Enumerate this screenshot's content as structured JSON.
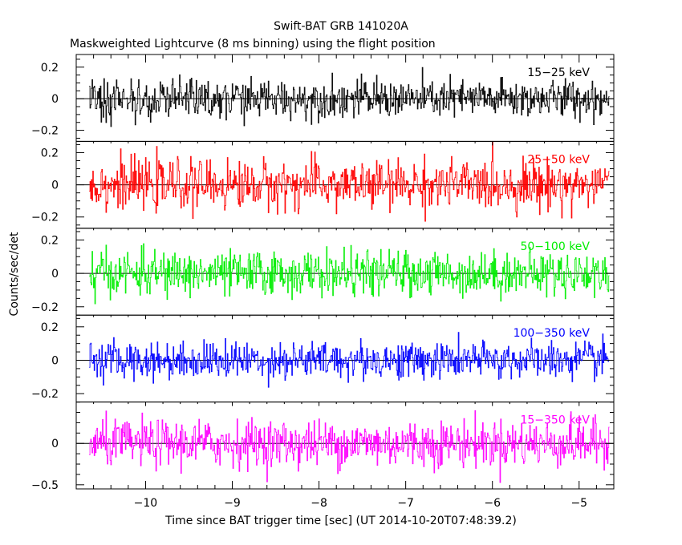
{
  "title": "Swift-BAT GRB 141020A",
  "subtitle": "Maskweighted Lightcurve (8 ms binning) using the flight position",
  "xlabel": "Time since BAT trigger time [sec] (UT 2014-10-20T07:48:39.2)",
  "ylabel": "Counts/sec/det",
  "chart_data": {
    "type": "line",
    "xlim": [
      -10.8,
      -4.6
    ],
    "x_range": [
      -10.65,
      -4.65
    ],
    "bin_width": 0.008,
    "x_ticks": [
      -10,
      -9,
      -8,
      -7,
      -6,
      -5
    ],
    "x_tick_labels": [
      "−10",
      "−9",
      "−8",
      "−7",
      "−6",
      "−5"
    ],
    "grid": false,
    "panels": [
      {
        "name": "15−25 keV",
        "color": "#000000",
        "ylim": [
          -0.27,
          0.28
        ],
        "yticks": [
          -0.2,
          0,
          0.2
        ],
        "ytick_labels": [
          "−0.2",
          "0",
          "0.2"
        ],
        "noise_sigma": 0.06,
        "mean": 0.0
      },
      {
        "name": "25−50 keV",
        "color": "#ff0000",
        "ylim": [
          -0.27,
          0.27
        ],
        "yticks": [
          -0.2,
          0,
          0.2
        ],
        "ytick_labels": [
          "−0.2",
          "0",
          "0.2"
        ],
        "noise_sigma": 0.075,
        "mean": 0.0
      },
      {
        "name": "50−100 keV",
        "color": "#00ee00",
        "ylim": [
          -0.25,
          0.27
        ],
        "yticks": [
          -0.2,
          0,
          0.2
        ],
        "ytick_labels": [
          "−0.2",
          "0",
          "0.2"
        ],
        "noise_sigma": 0.065,
        "mean": 0.0
      },
      {
        "name": "100−350 keV",
        "color": "#0000ff",
        "ylim": [
          -0.25,
          0.27
        ],
        "yticks": [
          -0.2,
          0,
          0.2
        ],
        "ytick_labels": [
          "−0.2",
          "0",
          "0.2"
        ],
        "noise_sigma": 0.055,
        "mean": 0.0
      },
      {
        "name": "15−350 keV",
        "color": "#ff00ff",
        "ylim": [
          -0.55,
          0.5
        ],
        "yticks": [
          -0.5,
          0
        ],
        "ytick_labels": [
          "−0.5",
          "0"
        ],
        "noise_sigma": 0.14,
        "mean": 0.0
      }
    ]
  }
}
